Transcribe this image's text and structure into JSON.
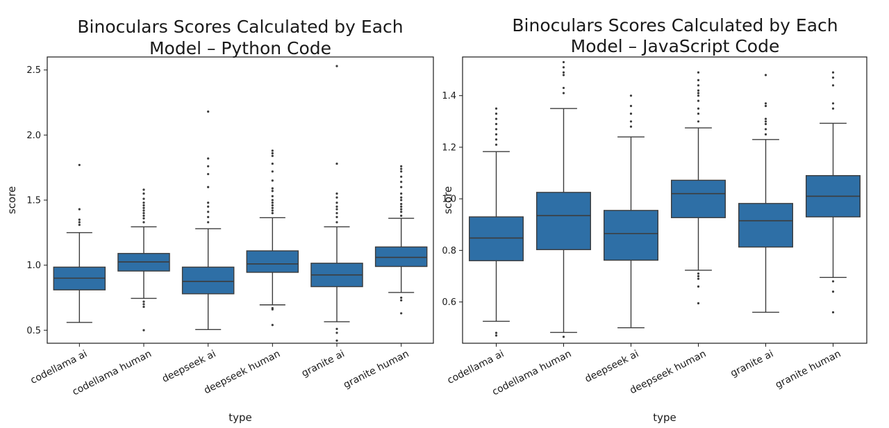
{
  "chart_data": [
    {
      "type": "box",
      "title_lines": [
        "Binoculars Scores Calculated by Each",
        "Model – Python Code"
      ],
      "xlabel": "type",
      "ylabel": "score",
      "ylim": [
        0.4,
        2.6
      ],
      "yticks": [
        "0.5",
        "1.0",
        "1.5",
        "2.0",
        "2.5"
      ],
      "ytick_values": [
        0.5,
        1.0,
        1.5,
        2.0,
        2.5
      ],
      "categories": [
        "codellama ai",
        "codellama human",
        "deepseek ai",
        "deepseek human",
        "granite ai",
        "granite human"
      ],
      "boxes": [
        {
          "whisker_low": 0.56,
          "q1": 0.81,
          "median": 0.9,
          "q3": 0.985,
          "whisker_high": 1.25,
          "outliers": [
            1.31,
            1.33,
            1.35,
            1.43,
            1.77
          ]
        },
        {
          "whisker_low": 0.745,
          "q1": 0.955,
          "median": 1.025,
          "q3": 1.09,
          "whisker_high": 1.295,
          "outliers": [
            0.5,
            0.68,
            0.7,
            0.72,
            1.33,
            1.36,
            1.38,
            1.4,
            1.42,
            1.44,
            1.46,
            1.48,
            1.51,
            1.55,
            1.58
          ]
        },
        {
          "whisker_low": 0.505,
          "q1": 0.78,
          "median": 0.875,
          "q3": 0.985,
          "whisker_high": 1.28,
          "outliers": [
            1.33,
            1.37,
            1.41,
            1.45,
            1.48,
            1.6,
            1.7,
            1.76,
            1.82,
            2.18
          ]
        },
        {
          "whisker_low": 0.695,
          "q1": 0.945,
          "median": 1.01,
          "q3": 1.11,
          "whisker_high": 1.365,
          "outliers": [
            0.54,
            0.66,
            0.67,
            1.4,
            1.42,
            1.44,
            1.46,
            1.48,
            1.5,
            1.53,
            1.57,
            1.59,
            1.65,
            1.72,
            1.78,
            1.84,
            1.86,
            1.88
          ]
        },
        {
          "whisker_low": 0.565,
          "q1": 0.835,
          "median": 0.925,
          "q3": 1.015,
          "whisker_high": 1.295,
          "outliers": [
            0.42,
            0.48,
            0.51,
            1.33,
            1.37,
            1.4,
            1.43,
            1.45,
            1.48,
            1.52,
            1.55,
            1.78,
            2.53
          ]
        },
        {
          "whisker_low": 0.79,
          "q1": 0.99,
          "median": 1.06,
          "q3": 1.14,
          "whisker_high": 1.36,
          "outliers": [
            0.63,
            0.73,
            0.75,
            1.38,
            1.41,
            1.43,
            1.45,
            1.47,
            1.5,
            1.52,
            1.55,
            1.6,
            1.64,
            1.68,
            1.72,
            1.74,
            1.76
          ]
        }
      ]
    },
    {
      "type": "box",
      "title_lines": [
        "Binoculars Scores Calculated by Each",
        "Model – JavaScript Code"
      ],
      "xlabel": "type",
      "ylabel": "score",
      "ylim": [
        0.44,
        1.55
      ],
      "yticks": [
        "0.6",
        "0.8",
        "1.0",
        "1.2",
        "1.4"
      ],
      "ytick_values": [
        0.6,
        0.8,
        1.0,
        1.2,
        1.4
      ],
      "categories": [
        "codellama ai",
        "codellama human",
        "deepseek ai",
        "deepseek human",
        "granite ai",
        "granite human"
      ],
      "boxes": [
        {
          "whisker_low": 0.525,
          "q1": 0.76,
          "median": 0.848,
          "q3": 0.93,
          "whisker_high": 1.183,
          "outliers": [
            0.47,
            0.48,
            1.21,
            1.23,
            1.25,
            1.27,
            1.29,
            1.31,
            1.33,
            1.35
          ]
        },
        {
          "whisker_low": 0.482,
          "q1": 0.803,
          "median": 0.935,
          "q3": 1.025,
          "whisker_high": 1.35,
          "outliers": [
            0.465,
            1.41,
            1.43,
            1.48,
            1.49,
            1.51,
            1.53
          ]
        },
        {
          "whisker_low": 0.5,
          "q1": 0.762,
          "median": 0.865,
          "q3": 0.955,
          "whisker_high": 1.24,
          "outliers": [
            1.28,
            1.3,
            1.33,
            1.36,
            1.4
          ]
        },
        {
          "whisker_low": 0.723,
          "q1": 0.927,
          "median": 1.02,
          "q3": 1.072,
          "whisker_high": 1.275,
          "outliers": [
            0.595,
            0.66,
            0.69,
            0.7,
            0.71,
            1.3,
            1.33,
            1.35,
            1.38,
            1.4,
            1.41,
            1.42,
            1.44,
            1.46,
            1.49
          ]
        },
        {
          "whisker_low": 0.56,
          "q1": 0.813,
          "median": 0.915,
          "q3": 0.982,
          "whisker_high": 1.23,
          "outliers": [
            1.25,
            1.27,
            1.29,
            1.3,
            1.31,
            1.36,
            1.37,
            1.48
          ]
        },
        {
          "whisker_low": 0.695,
          "q1": 0.93,
          "median": 1.01,
          "q3": 1.09,
          "whisker_high": 1.293,
          "outliers": [
            0.56,
            0.64,
            0.68,
            1.35,
            1.37,
            1.44,
            1.47,
            1.49
          ]
        }
      ]
    }
  ],
  "colors": {
    "box_fill": "#2e6fa6",
    "line": "#3c3c3c",
    "axis": "#1a1a1a"
  }
}
